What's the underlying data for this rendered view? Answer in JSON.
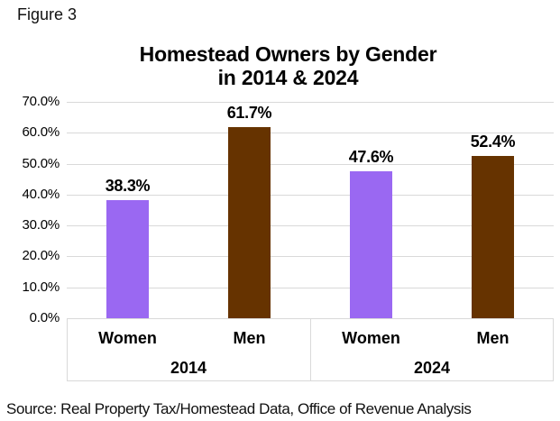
{
  "figure_label": "Figure 3",
  "source_note": "Source: Real Property Tax/Homestead Data, Office of Revenue Analysis",
  "chart_data": {
    "type": "bar",
    "title": "Homestead Owners by Gender in 2014 & 2024",
    "title_line1": "Homestead Owners by Gender",
    "title_line2": "in 2014 & 2024",
    "xlabel": "",
    "ylabel": "",
    "ylim": [
      0,
      70
    ],
    "grid": true,
    "legend_position": "none",
    "y_ticks": [
      {
        "value": 70,
        "label": "70.0%"
      },
      {
        "value": 60,
        "label": "60.0%"
      },
      {
        "value": 50,
        "label": "50.0%"
      },
      {
        "value": 40,
        "label": "40.0%"
      },
      {
        "value": 30,
        "label": "30.0%"
      },
      {
        "value": 20,
        "label": "20.0%"
      },
      {
        "value": 10,
        "label": "10.0%"
      },
      {
        "value": 0,
        "label": "0.0%"
      }
    ],
    "group_labels": [
      "2014",
      "2024"
    ],
    "bars": [
      {
        "group": "2014",
        "category": "Women",
        "value": 38.3,
        "label": "38.3%",
        "color": "#9a68f2"
      },
      {
        "group": "2014",
        "category": "Men",
        "value": 61.7,
        "label": "61.7%",
        "color": "#663300"
      },
      {
        "group": "2024",
        "category": "Women",
        "value": 47.6,
        "label": "47.6%",
        "color": "#9a68f2"
      },
      {
        "group": "2024",
        "category": "Men",
        "value": 52.4,
        "label": "52.4%",
        "color": "#663300"
      }
    ],
    "colors": {
      "women_bar": "#9a68f2",
      "men_bar": "#663300",
      "gridline": "#d9d9d9",
      "axis_box_border": "#d9d9d9",
      "text": "#000000"
    }
  }
}
